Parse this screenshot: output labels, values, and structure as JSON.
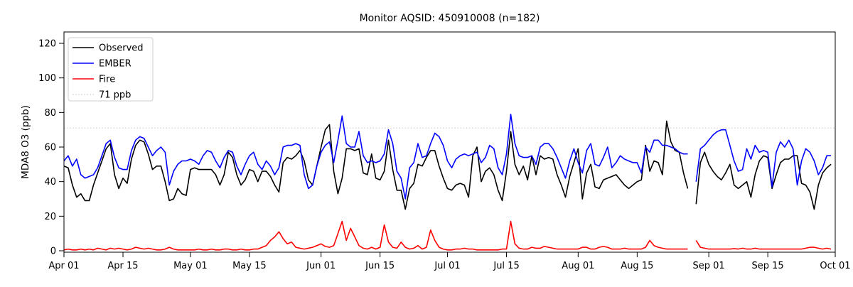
{
  "title": "Monitor AQSID: 450910008 (n=182)",
  "chart_data": {
    "type": "line",
    "title": "Monitor AQSID: 450910008 (n=182)",
    "xlabel": "",
    "ylabel": "MDA8 O3 (ppb)",
    "ylim": [
      -1,
      126.5
    ],
    "y_ticks": [
      0,
      20,
      40,
      60,
      80,
      100,
      120
    ],
    "grid": false,
    "legend_position": "upper left",
    "days_total": 183,
    "x_ticks": [
      {
        "label": "Apr 01",
        "day": 0
      },
      {
        "label": "Apr 15",
        "day": 14
      },
      {
        "label": "May 01",
        "day": 30
      },
      {
        "label": "May 15",
        "day": 44
      },
      {
        "label": "Jun 01",
        "day": 61
      },
      {
        "label": "Jun 15",
        "day": 75
      },
      {
        "label": "Jul 01",
        "day": 91
      },
      {
        "label": "Jul 15",
        "day": 105
      },
      {
        "label": "Aug 01",
        "day": 122
      },
      {
        "label": "Aug 15",
        "day": 136
      },
      {
        "label": "Sep 01",
        "day": 153
      },
      {
        "label": "Sep 15",
        "day": 167
      },
      {
        "label": "Oct 01",
        "day": 183
      }
    ],
    "threshold": {
      "label": "71 ppb",
      "value": 71,
      "color": "#d3d3d3",
      "style": "dotted"
    },
    "series": [
      {
        "name": "Observed",
        "color": "#000000",
        "values": [
          49,
          48,
          38,
          31,
          33,
          29,
          29,
          38,
          45,
          52,
          59,
          62,
          44,
          36,
          42,
          39,
          53,
          61,
          64,
          63,
          56,
          47,
          49,
          49,
          40,
          29,
          30,
          36,
          33,
          32,
          47,
          48,
          47,
          47,
          47,
          47,
          44,
          38,
          44,
          57,
          54,
          44,
          38,
          41,
          47,
          46,
          40,
          46,
          46,
          43,
          38,
          34,
          51,
          54,
          53,
          55,
          58,
          52,
          41,
          38,
          49,
          60,
          70,
          73,
          46,
          33,
          42,
          59,
          59,
          58,
          59,
          45,
          44,
          56,
          42,
          41,
          46,
          64,
          47,
          35,
          35,
          24,
          36,
          39,
          50,
          49,
          54,
          58,
          58,
          49,
          42,
          36,
          35,
          38,
          39,
          38,
          31,
          55,
          60,
          40,
          46,
          48,
          44,
          35,
          29,
          46,
          69,
          50,
          44,
          49,
          41,
          55,
          44,
          55,
          53,
          54,
          53,
          44,
          38,
          31,
          43,
          51,
          59,
          30,
          45,
          50,
          37,
          36,
          41,
          42,
          43,
          44,
          41,
          38,
          36,
          38,
          40,
          41,
          61,
          46,
          52,
          51,
          44,
          75,
          63,
          58,
          57,
          45,
          36,
          null,
          27,
          51,
          57,
          50,
          46,
          43,
          41,
          45,
          50,
          38,
          36,
          38,
          40,
          31,
          44,
          52,
          55,
          54,
          36,
          44,
          51,
          53,
          53,
          55,
          55,
          39,
          38,
          34,
          24,
          38,
          45,
          48,
          50
        ]
      },
      {
        "name": "EMBER",
        "color": "#0000ff",
        "values": [
          52,
          55,
          49,
          53,
          44,
          42,
          43,
          44,
          48,
          55,
          62,
          64,
          54,
          48,
          47,
          47,
          58,
          64,
          66,
          65,
          60,
          55,
          58,
          60,
          57,
          38,
          46,
          50,
          52,
          52,
          53,
          52,
          50,
          55,
          58,
          57,
          52,
          48,
          54,
          58,
          57,
          49,
          44,
          50,
          55,
          57,
          50,
          47,
          52,
          49,
          44,
          48,
          60,
          61,
          61,
          62,
          61,
          44,
          36,
          38,
          49,
          57,
          61,
          63,
          51,
          64,
          78,
          62,
          60,
          60,
          69,
          55,
          51,
          52,
          51,
          52,
          56,
          70,
          62,
          46,
          42,
          30,
          48,
          51,
          62,
          54,
          55,
          62,
          68,
          66,
          61,
          52,
          48,
          53,
          55,
          56,
          55,
          56,
          57,
          51,
          54,
          61,
          59,
          48,
          44,
          56,
          79,
          62,
          55,
          54,
          54,
          55,
          50,
          60,
          62,
          62,
          59,
          54,
          48,
          42,
          52,
          59,
          51,
          45,
          58,
          62,
          50,
          49,
          54,
          60,
          48,
          51,
          55,
          53,
          52,
          51,
          51,
          45,
          60,
          57,
          64,
          64,
          61,
          61,
          60,
          59,
          57,
          56,
          56,
          null,
          40,
          59,
          61,
          64,
          67,
          69,
          70,
          70,
          61,
          52,
          46,
          47,
          59,
          53,
          61,
          57,
          58,
          57,
          37,
          57,
          63,
          60,
          64,
          59,
          38,
          52,
          59,
          57,
          52,
          44,
          48,
          55,
          55
        ]
      },
      {
        "name": "Fire",
        "color": "#ff0000",
        "values": [
          0.5,
          1,
          0.5,
          0.5,
          1,
          0.5,
          1,
          0.5,
          1.5,
          1,
          0.5,
          1.5,
          1,
          1.5,
          1,
          0.5,
          1,
          2,
          1.5,
          1,
          1.5,
          1,
          0.5,
          0.5,
          1,
          2,
          1,
          0.5,
          0.5,
          0.5,
          0.5,
          0.5,
          1,
          0.5,
          0.5,
          1,
          0.5,
          0.5,
          1,
          1,
          0.5,
          0.5,
          1,
          0.5,
          0.5,
          1,
          1,
          2,
          3,
          6,
          8,
          11,
          7,
          4,
          5,
          2,
          1.5,
          1,
          1.5,
          2,
          3,
          4,
          2.5,
          2,
          3,
          10,
          17,
          6,
          13,
          8,
          3,
          1.5,
          1,
          2,
          1,
          2,
          15,
          5,
          2,
          1.5,
          5,
          2,
          1,
          1.5,
          3,
          1,
          2,
          12,
          6,
          2,
          1,
          0.5,
          0.5,
          1,
          1,
          1.5,
          1,
          1,
          0.5,
          0.5,
          0.5,
          0.5,
          0.5,
          0.5,
          1,
          1,
          17,
          4,
          1.5,
          1,
          1,
          2,
          1.5,
          1.5,
          2.5,
          2,
          1.5,
          1,
          1,
          1,
          1,
          1,
          1,
          2,
          2,
          1,
          1,
          2,
          2.5,
          2,
          1,
          1,
          1,
          1.5,
          1,
          1,
          1,
          1,
          2,
          6,
          3,
          2,
          1.5,
          1,
          1,
          1,
          1,
          1,
          1,
          null,
          6,
          2,
          1.5,
          1,
          1,
          1,
          1,
          1,
          1,
          1.2,
          1,
          1.5,
          1,
          1,
          1.5,
          1,
          1,
          1,
          1,
          1,
          1,
          1,
          1,
          1,
          1,
          1,
          1.5,
          2,
          2,
          1.5,
          1,
          1.5,
          1
        ]
      }
    ],
    "legend_entries": [
      "Observed",
      "EMBER",
      "Fire",
      "71 ppb"
    ]
  }
}
